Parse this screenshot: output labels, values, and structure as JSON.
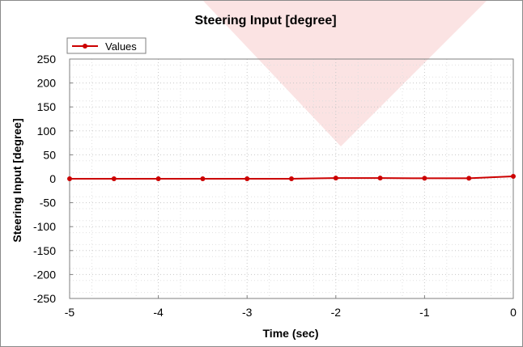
{
  "colors": {
    "series": "#cc0000",
    "watermark": "#fbe3e3",
    "grid": "#c8c8c8",
    "axis": "#7f7f7f"
  },
  "chart_data": {
    "type": "line",
    "title": "Steering Input [degree]",
    "xlabel": "Time (sec)",
    "ylabel": "Steering Input [degree]",
    "xlim": [
      -5,
      0
    ],
    "ylim": [
      -250,
      250
    ],
    "xticks": [
      -5,
      -4,
      -3,
      -2,
      -1,
      0
    ],
    "yticks": [
      250,
      200,
      150,
      100,
      50,
      0,
      -50,
      -100,
      -150,
      -200,
      -250
    ],
    "grid": true,
    "legend": "top-left",
    "series": [
      {
        "name": "Values",
        "marker": "circle",
        "x": [
          -5,
          -4.5,
          -4,
          -3.5,
          -3,
          -2.5,
          -2,
          -1.5,
          -1,
          -0.5,
          0
        ],
        "y": [
          0,
          0,
          0,
          0,
          0,
          0,
          1.5,
          1.5,
          1,
          1,
          5
        ]
      }
    ]
  }
}
